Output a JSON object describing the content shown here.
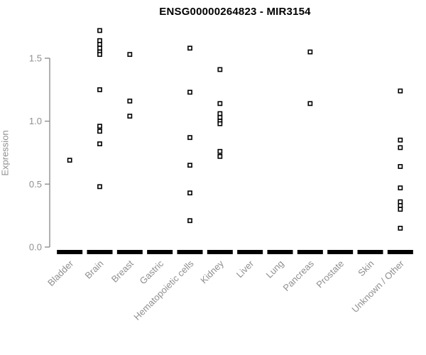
{
  "chart_data": {
    "type": "scatter",
    "subtype": "strip-plot",
    "title": "ENSG00000264823 - MIR3154",
    "ylabel": "Expression",
    "xlabel": "",
    "ylim": [
      0,
      1.78
    ],
    "ytick_values": [
      0,
      0.5,
      1.0,
      1.5
    ],
    "ytick_labels": [
      "0.0",
      "0.5",
      "1.0",
      "1.5"
    ],
    "grid": "off",
    "legend": "none",
    "point_marker": "open-square",
    "colors": {
      "points": "#000000",
      "zero_bar": "#000000",
      "axis_text": "#8f8f8f",
      "axis_line": "#8f8f8f",
      "title": "#000000",
      "background": "#ffffff"
    },
    "categories": [
      "Bladder",
      "Brain",
      "Breast",
      "Gastric",
      "Hematopoietic cells",
      "Kidney",
      "Liver",
      "Lung",
      "Pancreas",
      "Prostate",
      "Skin",
      "Unknown / Other"
    ],
    "series": [
      {
        "category": "Bladder",
        "values": [
          0.69
        ],
        "zero_cluster": true
      },
      {
        "category": "Brain",
        "values": [
          1.72,
          1.64,
          1.61,
          1.58,
          1.55,
          1.53,
          1.25,
          0.96,
          0.92,
          0.82,
          0.48
        ],
        "zero_cluster": true
      },
      {
        "category": "Breast",
        "values": [
          1.53,
          1.16,
          1.04
        ],
        "zero_cluster": true
      },
      {
        "category": "Gastric",
        "values": [],
        "zero_cluster": true
      },
      {
        "category": "Hematopoietic cells",
        "values": [
          1.58,
          1.23,
          0.87,
          0.65,
          0.43,
          0.21
        ],
        "zero_cluster": true
      },
      {
        "category": "Kidney",
        "values": [
          1.41,
          1.14,
          1.06,
          1.03,
          1.0,
          0.98,
          0.76,
          0.72
        ],
        "zero_cluster": true
      },
      {
        "category": "Liver",
        "values": [],
        "zero_cluster": true
      },
      {
        "category": "Lung",
        "values": [],
        "zero_cluster": true
      },
      {
        "category": "Pancreas",
        "values": [
          1.55,
          1.14
        ],
        "zero_cluster": true
      },
      {
        "category": "Prostate",
        "values": [],
        "zero_cluster": true
      },
      {
        "category": "Skin",
        "values": [],
        "zero_cluster": true
      },
      {
        "category": "Unknown / Other",
        "values": [
          1.24,
          0.85,
          0.79,
          0.64,
          0.47,
          0.36,
          0.33,
          0.3,
          0.15
        ],
        "zero_cluster": true
      }
    ]
  }
}
